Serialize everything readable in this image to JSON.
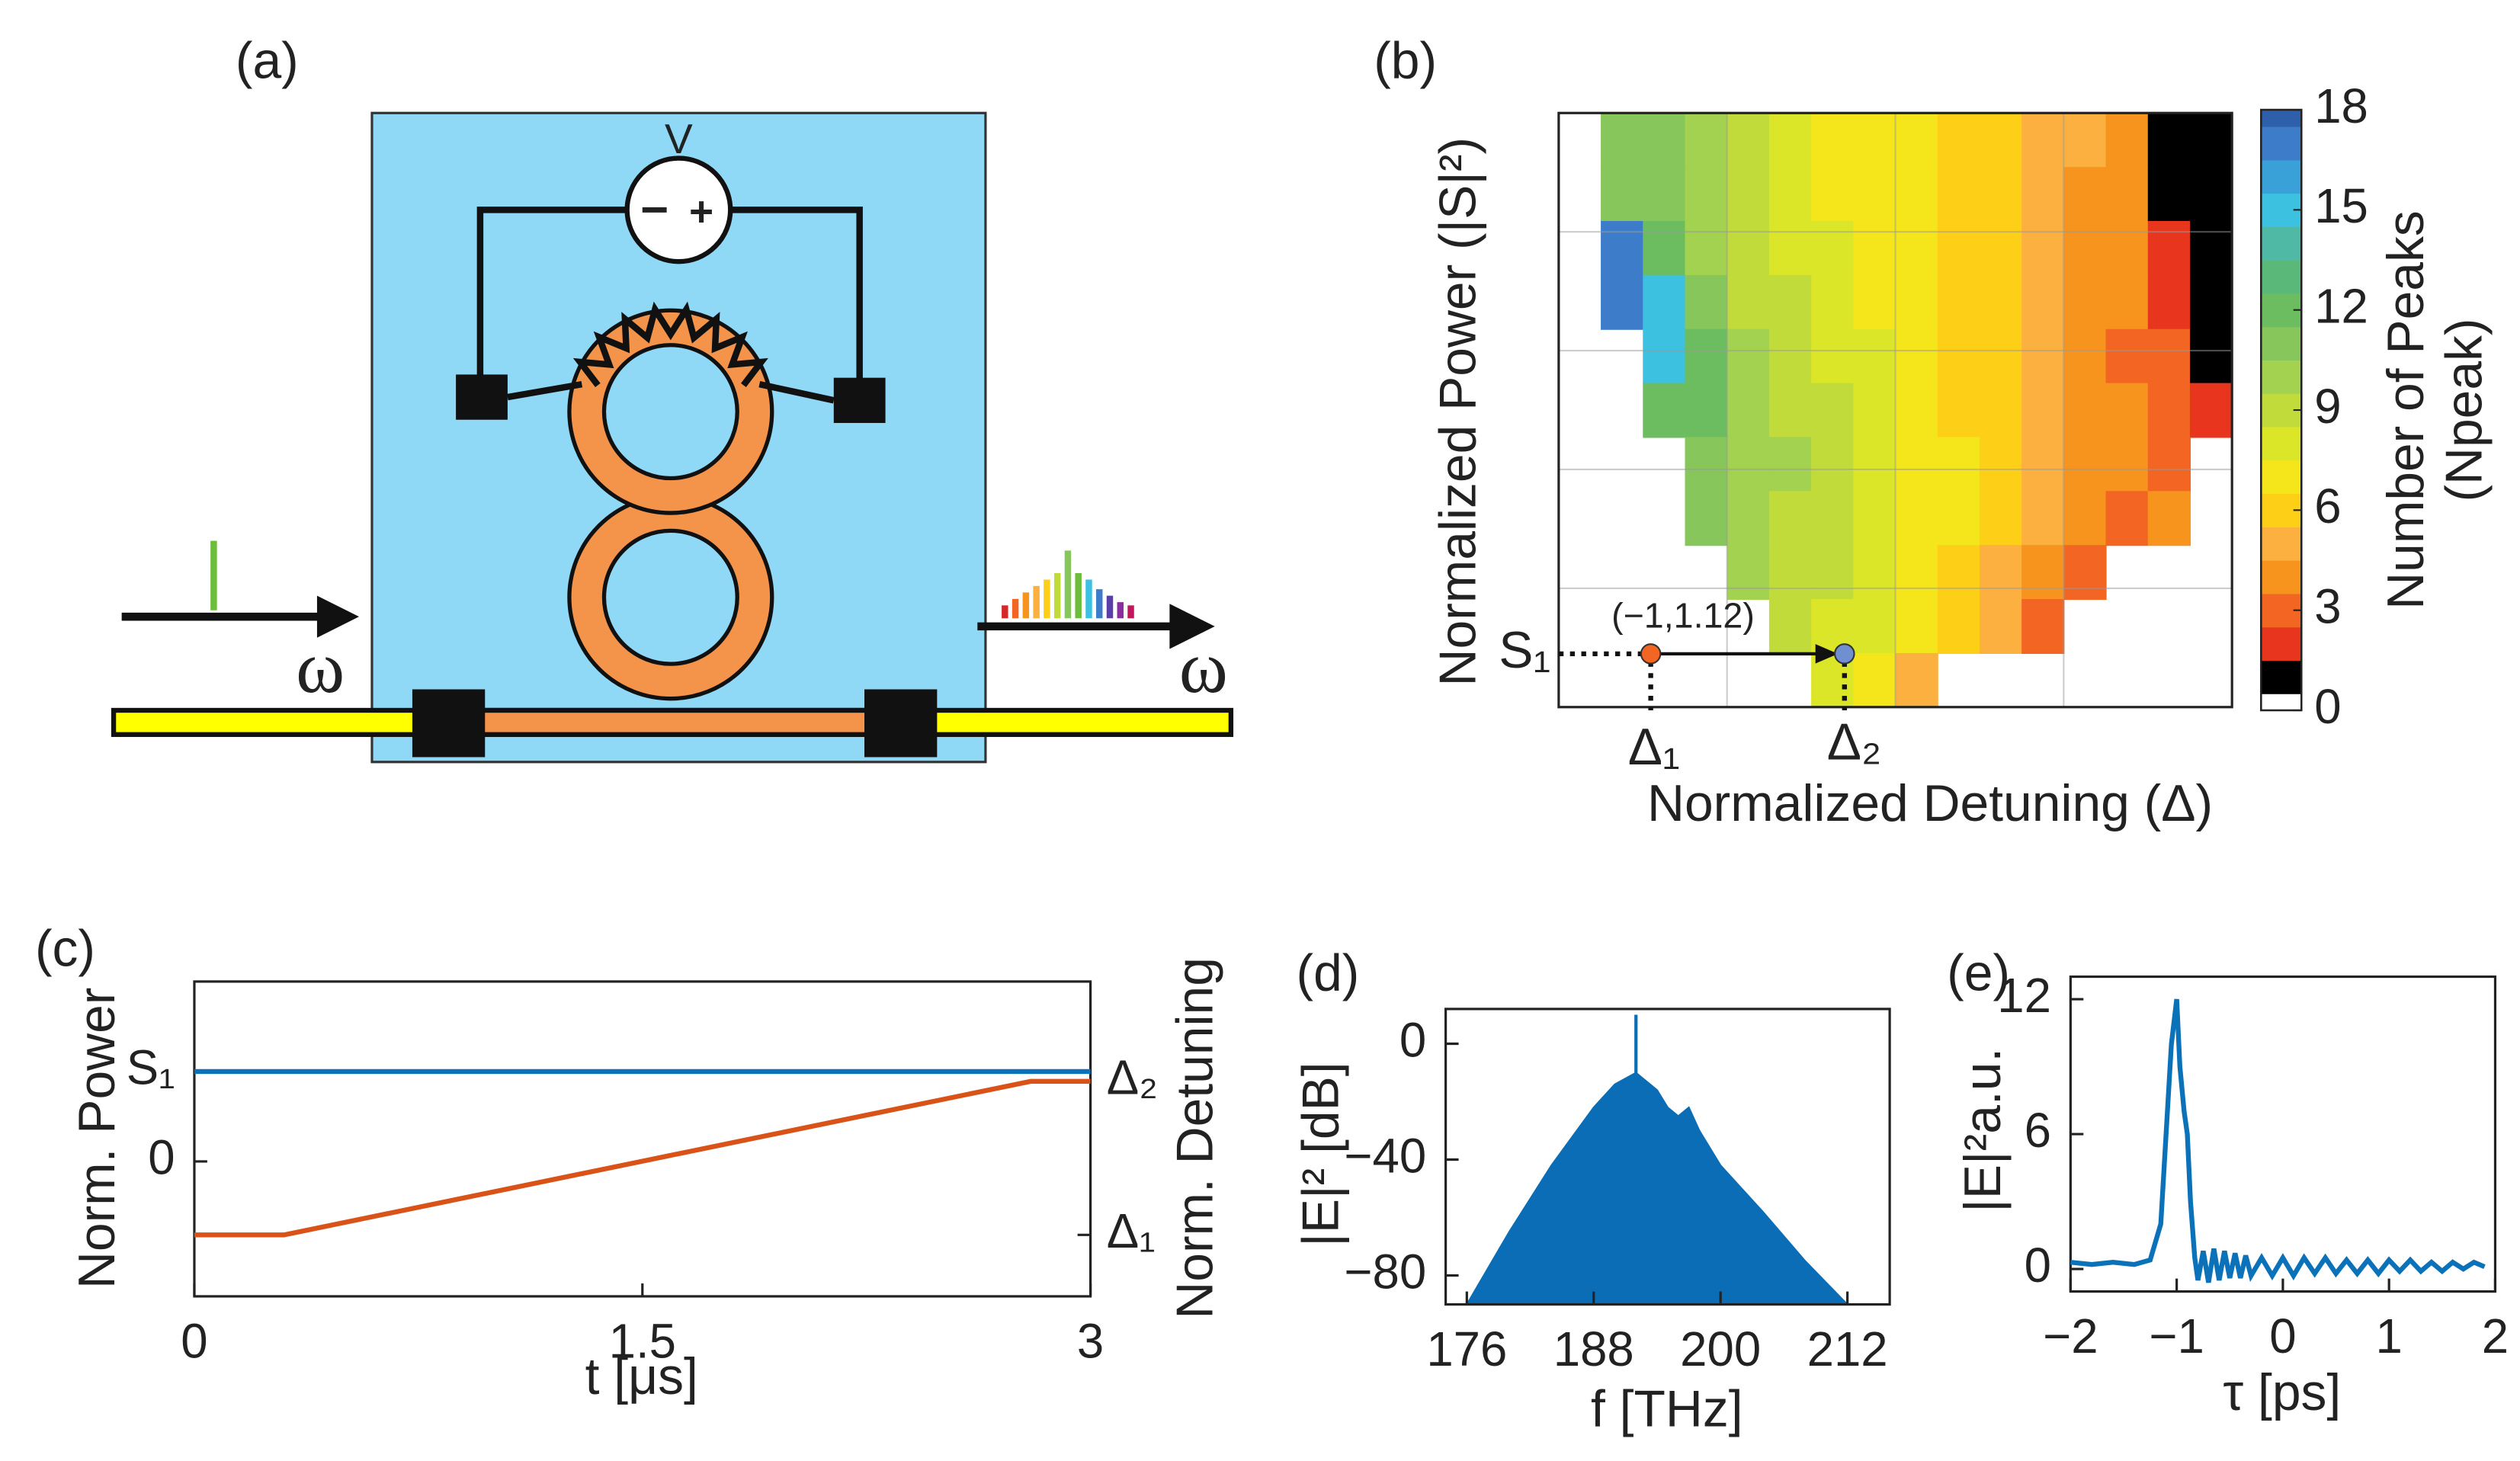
{
  "diagram_a": {
    "panel_label": "(a)",
    "voltage_label": "V",
    "minus_sign": "−",
    "plus_sign": "+",
    "input_label": "ω",
    "output_label": "ω"
  },
  "chart_data": [
    {
      "type": "heatmap",
      "panel_label": "(b)",
      "x_label": "Normalized Detuning (Δ)",
      "y_label": "Normalized Power (|S|²)",
      "z": [
        [
          null,
          11,
          11,
          10,
          9,
          8,
          7,
          7,
          7,
          6,
          6,
          5,
          5,
          4,
          1,
          1
        ],
        [
          null,
          11,
          11,
          10,
          9,
          8,
          7,
          7,
          7,
          6,
          6,
          5,
          4,
          4,
          1,
          1
        ],
        [
          null,
          17,
          12,
          10,
          9,
          8,
          8,
          7,
          7,
          6,
          6,
          5,
          4,
          4,
          2,
          1
        ],
        [
          null,
          17,
          15,
          11,
          9,
          9,
          8,
          7,
          7,
          6,
          6,
          5,
          4,
          4,
          2,
          1
        ],
        [
          null,
          null,
          15,
          12,
          10,
          9,
          8,
          8,
          7,
          6,
          6,
          5,
          4,
          3,
          3,
          1
        ],
        [
          null,
          null,
          12,
          12,
          10,
          9,
          9,
          8,
          7,
          6,
          6,
          5,
          4,
          4,
          3,
          2
        ],
        [
          null,
          null,
          null,
          11,
          10,
          10,
          9,
          8,
          7,
          7,
          6,
          5,
          4,
          4,
          3,
          null
        ],
        [
          null,
          null,
          null,
          11,
          10,
          9,
          9,
          8,
          7,
          7,
          6,
          5,
          4,
          3,
          4,
          null
        ],
        [
          null,
          null,
          null,
          null,
          10,
          9,
          9,
          8,
          7,
          6,
          5,
          4,
          3,
          null,
          null,
          null
        ],
        [
          null,
          null,
          null,
          null,
          null,
          9,
          8,
          8,
          7,
          6,
          5,
          3,
          null,
          null,
          null,
          null
        ],
        [
          null,
          null,
          null,
          null,
          null,
          null,
          8,
          7,
          5,
          null,
          null,
          null,
          null,
          null,
          null,
          null
        ]
      ],
      "colormap": [
        "#ffffff",
        "#000000",
        "#e8361e",
        "#f26522",
        "#f7941d",
        "#fbb040",
        "#fdd017",
        "#f4e61b",
        "#dbe628",
        "#c1dc3a",
        "#a3d150",
        "#86c65a",
        "#6cbd5f",
        "#5ab978",
        "#4fb9a6",
        "#3cc1e0",
        "#3aa0d8",
        "#3d7cc9",
        "#2e5fab"
      ],
      "colorbar_lim": [
        0,
        18
      ],
      "colorbar_ticks": [
        0,
        3,
        6,
        9,
        12,
        15,
        18
      ],
      "colorbar_label": [
        "Number of Peaks",
        "(Npeak)"
      ],
      "annotations": {
        "s1": "S₁",
        "delta1": "Δ₁",
        "delta2": "Δ₂",
        "point": "(−1,1.12)"
      },
      "grid": true
    },
    {
      "type": "line",
      "panel_label": "(c)",
      "x_label": "t [μs]",
      "y_label": "Norm. Power",
      "y2_label": "Norm. Detuning",
      "xlim": [
        0,
        3
      ],
      "xticks": [
        0,
        1.5,
        3
      ],
      "ylim": [
        -1.5,
        2
      ],
      "yticks": [
        0,
        {
          "value": 1,
          "label": "S₁"
        }
      ],
      "y2lim": [
        -2.6,
        5.6
      ],
      "y2ticks": [
        {
          "value": -1,
          "label": "Δ₁"
        },
        {
          "value": 3,
          "label": "Δ₂"
        }
      ],
      "series": [
        {
          "color": "#0b72b9",
          "x": [
            0,
            3
          ],
          "values": [
            1,
            1
          ]
        },
        {
          "color": "#d95319",
          "axis": "y2",
          "x": [
            0,
            0.3,
            2.8,
            3
          ],
          "values": [
            -1,
            -1,
            3,
            3
          ]
        }
      ]
    },
    {
      "type": "area",
      "panel_label": "(d)",
      "x_label": "f [THz]",
      "y_label": "|E|² [dB]",
      "xlim": [
        174,
        216
      ],
      "xticks": [
        176,
        188,
        200,
        212
      ],
      "ylim": [
        -90,
        12
      ],
      "yticks": [
        {
          "value": -80,
          "label": "−80"
        },
        {
          "value": -40,
          "label": "−40"
        },
        0
      ],
      "series": [
        {
          "color": "#0b6db5",
          "x": [
            176,
            180,
            184,
            188,
            190,
            192,
            194,
            195,
            196,
            197,
            198,
            200,
            204,
            208,
            212
          ],
          "values": [
            -90,
            -65,
            -42,
            -22,
            -14,
            -10,
            -16,
            -22,
            -25,
            -22,
            -30,
            -42,
            -58,
            -75,
            -90
          ]
        }
      ],
      "stems": {
        "x": [
          192
        ],
        "values": [
          10
        ]
      }
    },
    {
      "type": "line",
      "panel_label": "(e)",
      "x_label": "τ [ps]",
      "y_label": "|E|²a.u.",
      "xlim": [
        -2,
        2
      ],
      "xticks": [
        {
          "value": -2,
          "label": "−2"
        },
        {
          "value": -1,
          "label": "−1"
        },
        0,
        1,
        2
      ],
      "ylim": [
        -1,
        13
      ],
      "yticks": [
        0,
        6,
        12
      ],
      "series": [
        {
          "color": "#0b72b9",
          "x": [
            -2,
            -1.8,
            -1.6,
            -1.4,
            -1.25,
            -1.15,
            -1.1,
            -1.05,
            -1,
            -0.97,
            -0.93,
            -0.9,
            -0.87,
            -0.83,
            -0.8,
            -0.75,
            -0.7,
            -0.65,
            -0.6,
            -0.55,
            -0.5,
            -0.45,
            -0.4,
            -0.35,
            -0.3,
            -0.2,
            -0.1,
            0,
            0.1,
            0.2,
            0.3,
            0.4,
            0.5,
            0.6,
            0.7,
            0.8,
            0.9,
            1,
            1.1,
            1.2,
            1.3,
            1.4,
            1.5,
            1.6,
            1.7,
            1.8,
            1.9
          ],
          "values": [
            0.3,
            0.2,
            0.3,
            0.2,
            0.4,
            2,
            6,
            10,
            12,
            9,
            7,
            6,
            3,
            0.5,
            -0.5,
            0.8,
            -0.6,
            0.9,
            -0.5,
            0.8,
            -0.4,
            0.7,
            -0.4,
            0.6,
            -0.3,
            0.5,
            -0.3,
            0.5,
            -0.3,
            0.5,
            -0.2,
            0.5,
            -0.2,
            0.4,
            -0.2,
            0.4,
            -0.2,
            0.4,
            -0.1,
            0.4,
            -0.1,
            0.3,
            -0.1,
            0.3,
            0,
            0.3,
            0.1
          ]
        }
      ]
    }
  ]
}
